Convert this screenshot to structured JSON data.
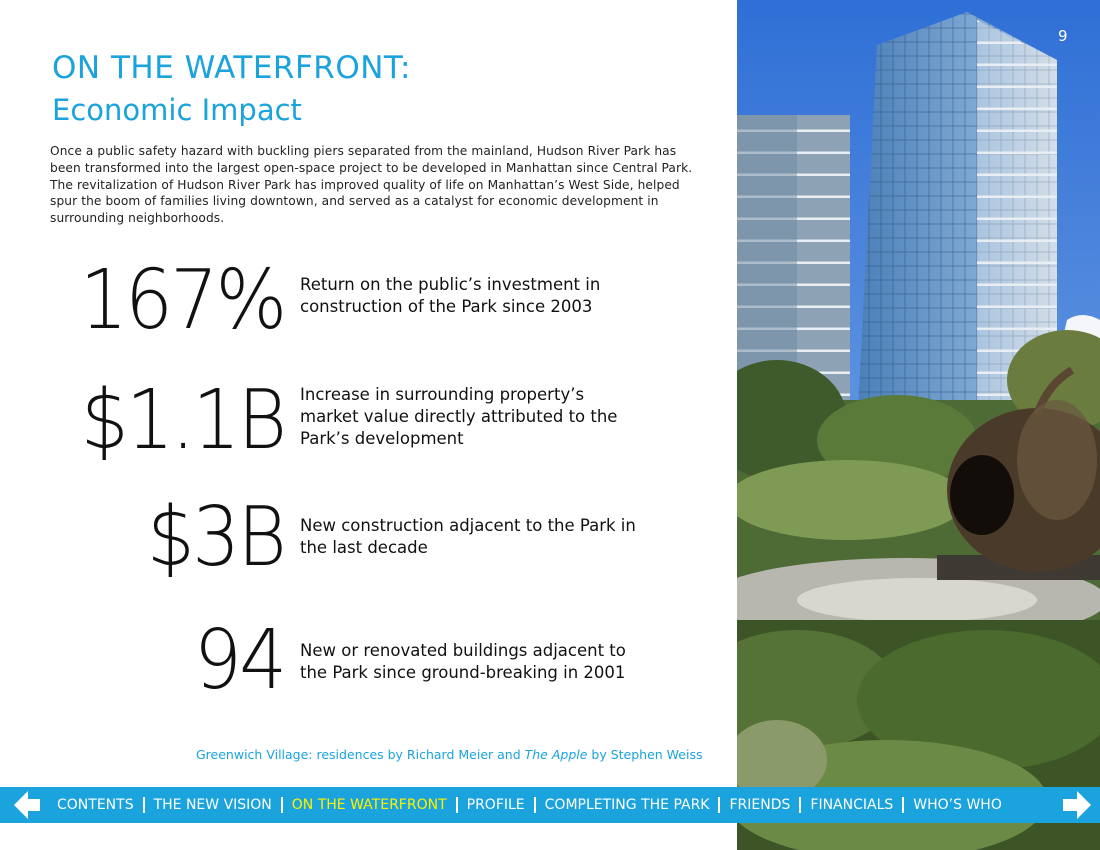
{
  "page_number": "9",
  "header": {
    "title": "ON THE WATERFRONT:",
    "subtitle": "Economic Impact"
  },
  "intro": "Once a public safety hazard with buckling piers separated from the mainland, Hudson River Park has been transformed into the largest open-space project to be developed in Manhattan since Central Park. The revitalization of Hudson River Park has improved quality of life on Manhattan’s West Side, helped spur the boom of families living downtown, and served as a catalyst for economic development in surrounding neighborhoods.",
  "stats": [
    {
      "value": "167%",
      "text": "Return on the public’s investment in construction of the Park since 2003"
    },
    {
      "value": "$1.1B",
      "text": "Increase in surrounding property’s market value directly attributed to the Park’s development"
    },
    {
      "value": "$3B",
      "text": "New construction adjacent to the Park in the last decade"
    },
    {
      "value": "94",
      "text": "New or renovated buildings adjacent to the Park since ground-breaking in 2001"
    }
  ],
  "caption": {
    "before": "Greenwich Village: residences by Richard Meier and ",
    "italic": "The Apple",
    "after": " by Stephen Weiss"
  },
  "nav": {
    "items": [
      "CONTENTS",
      "THE NEW VISION",
      "ON THE WATERFRONT",
      "PROFILE",
      "COMPLETING THE PARK",
      "FRIENDS",
      "FINANCIALS",
      "WHO’S WHO"
    ],
    "current": 2
  }
}
